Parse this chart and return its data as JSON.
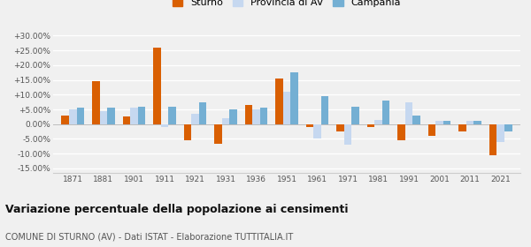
{
  "years": [
    1871,
    1881,
    1901,
    1911,
    1921,
    1931,
    1936,
    1951,
    1961,
    1971,
    1981,
    1991,
    2001,
    2011,
    2021
  ],
  "sturno": [
    3.0,
    14.5,
    2.5,
    26.0,
    -5.5,
    -6.5,
    6.5,
    15.5,
    -1.0,
    -2.5,
    -1.0,
    -5.5,
    -4.0,
    -2.5,
    -10.5
  ],
  "provincia_av": [
    5.0,
    4.5,
    5.5,
    -1.0,
    3.5,
    2.0,
    5.0,
    11.0,
    -5.0,
    -7.0,
    1.5,
    7.5,
    1.0,
    1.0,
    -6.0
  ],
  "campania": [
    5.5,
    5.5,
    6.0,
    6.0,
    7.5,
    5.0,
    5.5,
    17.5,
    9.5,
    6.0,
    8.0,
    3.0,
    1.0,
    1.0,
    -2.5
  ],
  "color_sturno": "#d95f02",
  "color_prov": "#c6d8f0",
  "color_camp": "#74afd3",
  "legend_labels": [
    "Sturno",
    "Provincia di AV",
    "Campania"
  ],
  "title": "Variazione percentuale della popolazione ai censimenti",
  "subtitle": "COMUNE DI STURNO (AV) - Dati ISTAT - Elaborazione TUTTITALIA.IT",
  "ylim": [
    -16.5,
    32
  ],
  "yticks": [
    -15,
    -10,
    -5,
    0,
    5,
    10,
    15,
    20,
    25,
    30
  ],
  "ytick_labels": [
    "-15.00%",
    "-10.00%",
    "-5.00%",
    "0.00%",
    "+5.00%",
    "+10.00%",
    "+15.00%",
    "+20.00%",
    "+25.00%",
    "+30.00%"
  ],
  "background_color": "#f0f0f0",
  "grid_color": "#ffffff",
  "bar_width": 0.25
}
